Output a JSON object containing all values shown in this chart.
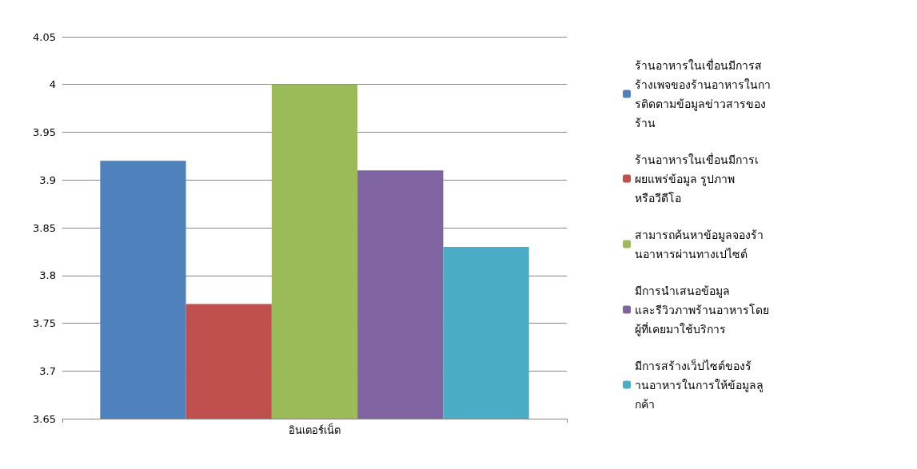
{
  "chart_data": {
    "type": "bar",
    "categories": [
      "อินเตอร์เน็ต"
    ],
    "series": [
      {
        "name": "ร้านอาหารในเขื่อนมีการสร้างเพจของร้านอาหารในการติดตามข้อมูลข่าวสารของร้าน",
        "color": "#4f81bd",
        "values": [
          3.92
        ]
      },
      {
        "name": "ร้านอาหารในเขื่อนมีการเผยแพร่ข้อมูล รูปภาพ หรือวีดีโอ",
        "color": "#c0504d",
        "values": [
          3.77
        ]
      },
      {
        "name": "สามารถค้นหาข้อมูลจองร้านอาหารผ่านทางเปไซต์",
        "color": "#9bbb59",
        "values": [
          4.0
        ]
      },
      {
        "name": "มีการนำเสนอข้อมูล และรีวิวภาพร้านอาหารโดยผู้ที่เคยมาใช้บริการ",
        "color": "#8064a2",
        "values": [
          3.91
        ]
      },
      {
        "name": "มีการสร้างเว็ปไซต์ของร้านอาหารในการให้ข้อมูลลูกค้า",
        "color": "#4bacc6",
        "values": [
          3.83
        ]
      }
    ],
    "ylim": [
      3.65,
      4.05
    ],
    "yticks": [
      3.65,
      3.7,
      3.75,
      3.8,
      3.85,
      3.9,
      3.95,
      4,
      4.05
    ],
    "grid": "y",
    "legend": "right"
  }
}
